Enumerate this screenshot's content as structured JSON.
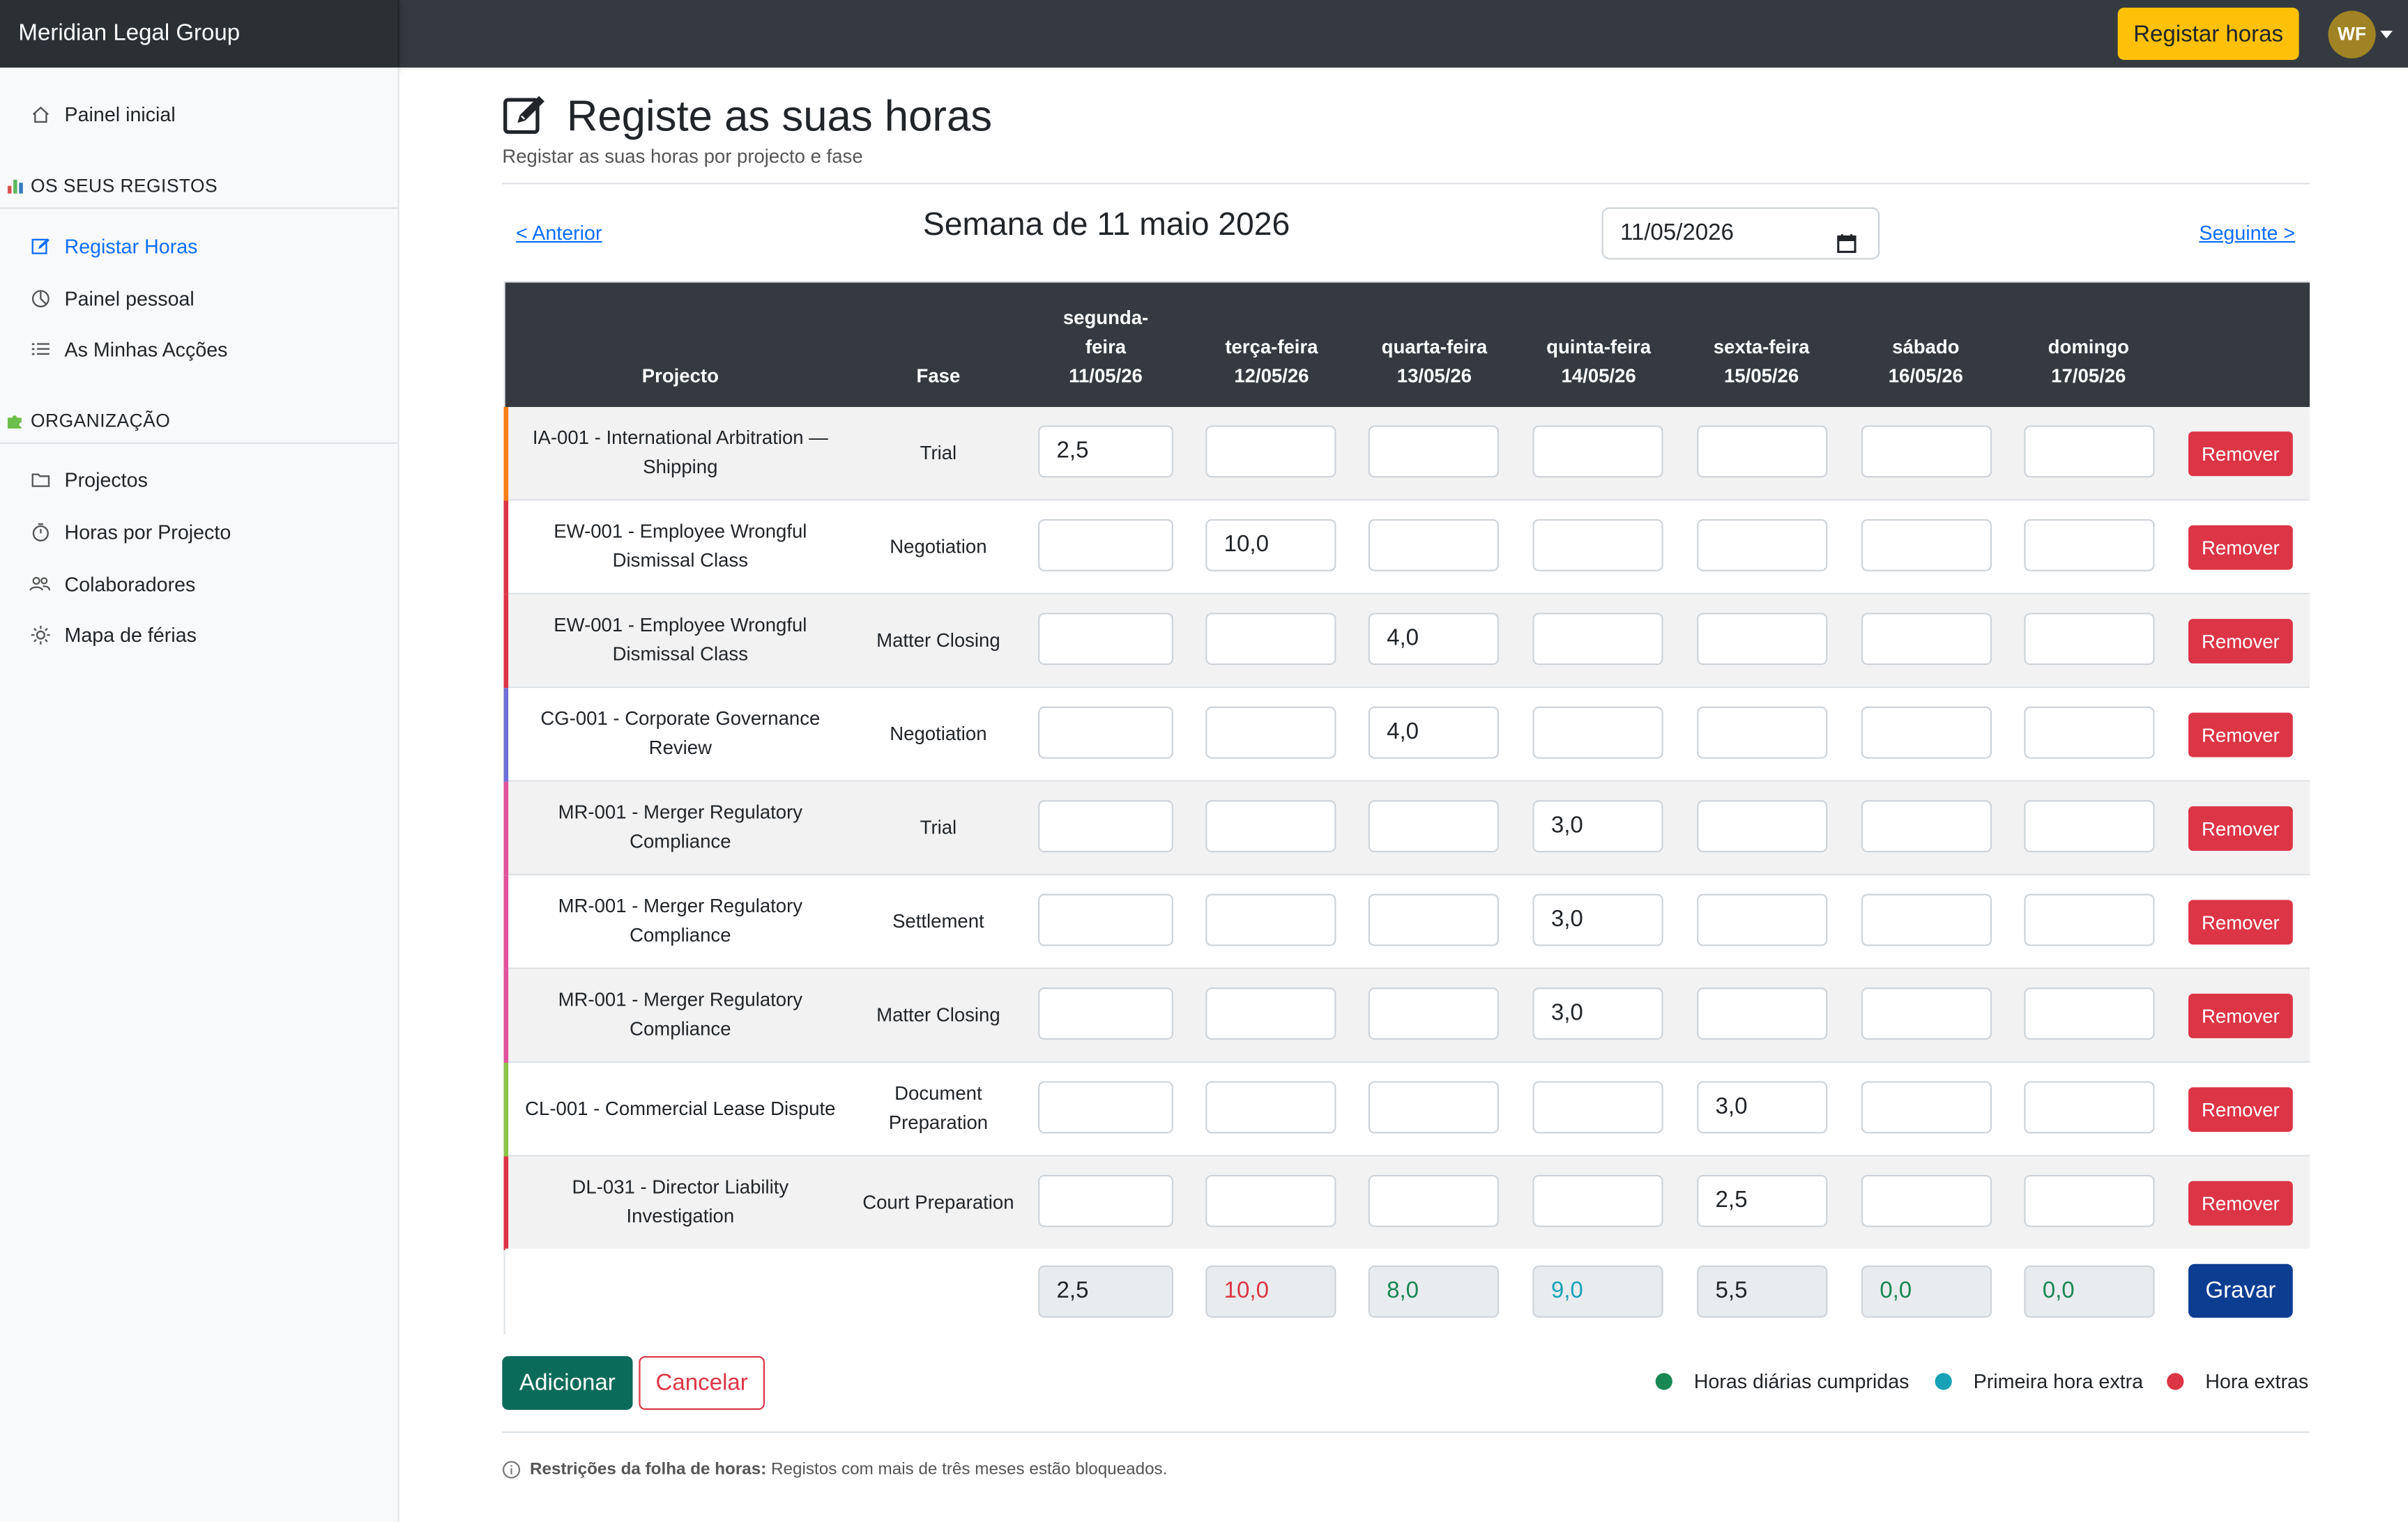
{
  "app": {
    "brand": "Meridian Legal Group",
    "register_button": "Registar horas",
    "avatar_initials": "WF"
  },
  "sidebar": {
    "home": "Painel inicial",
    "section1": "OS SEUS REGISTOS",
    "section1_items": [
      "Registar Horas",
      "Painel pessoal",
      "As Minhas Acções"
    ],
    "section2": "ORGANIZAÇÃO",
    "section2_items": [
      "Projectos",
      "Horas por Projecto",
      "Colaboradores",
      "Mapa de férias"
    ]
  },
  "page": {
    "title": "Registe as suas horas",
    "subtitle": "Registar as suas horas por projecto e fase",
    "prev": "< Anterior",
    "next": "Seguinte >",
    "week_label": "Semana de 11 maio 2026",
    "date_value": "11/05/2026"
  },
  "table": {
    "col_project": "Projecto",
    "col_phase": "Fase",
    "days": [
      {
        "name": "segunda-feira",
        "date": "11/05/26"
      },
      {
        "name": "terça-feira",
        "date": "12/05/26"
      },
      {
        "name": "quarta-feira",
        "date": "13/05/26"
      },
      {
        "name": "quinta-feira",
        "date": "14/05/26"
      },
      {
        "name": "sexta-feira",
        "date": "15/05/26"
      },
      {
        "name": "sábado",
        "date": "16/05/26"
      },
      {
        "name": "domingo",
        "date": "17/05/26"
      }
    ],
    "remove_label": "Remover",
    "rows": [
      {
        "project": "IA-001 - International Arbitration — Shipping",
        "phase": "Trial",
        "color": "#fd7e14",
        "hours": [
          "2,5",
          "",
          "",
          "",
          "",
          "",
          ""
        ]
      },
      {
        "project": "EW-001 - Employee Wrongful Dismissal Class",
        "phase": "Negotiation",
        "color": "#dc3545",
        "hours": [
          "",
          "10,0",
          "",
          "",
          "",
          "",
          ""
        ]
      },
      {
        "project": "EW-001 - Employee Wrongful Dismissal Class",
        "phase": "Matter Closing",
        "color": "#dc3545",
        "hours": [
          "",
          "",
          "4,0",
          "",
          "",
          "",
          ""
        ]
      },
      {
        "project": "CG-001 - Corporate Governance Review",
        "phase": "Negotiation",
        "color": "#6f6fd6",
        "hours": [
          "",
          "",
          "4,0",
          "",
          "",
          "",
          ""
        ]
      },
      {
        "project": "MR-001 - Merger Regulatory Compliance",
        "phase": "Trial",
        "color": "#e0529c",
        "hours": [
          "",
          "",
          "",
          "3,0",
          "",
          "",
          ""
        ]
      },
      {
        "project": "MR-001 - Merger Regulatory Compliance",
        "phase": "Settlement",
        "color": "#e0529c",
        "hours": [
          "",
          "",
          "",
          "3,0",
          "",
          "",
          ""
        ]
      },
      {
        "project": "MR-001 - Merger Regulatory Compliance",
        "phase": "Matter Closing",
        "color": "#e0529c",
        "hours": [
          "",
          "",
          "",
          "3,0",
          "",
          "",
          ""
        ]
      },
      {
        "project": "CL-001 - Commercial Lease Dispute",
        "phase": "Document Preparation",
        "color": "#8bc34a",
        "hours": [
          "",
          "",
          "",
          "",
          "3,0",
          "",
          ""
        ]
      },
      {
        "project": "DL-031 - Director Liability Investigation",
        "phase": "Court Preparation",
        "color": "#dc3545",
        "hours": [
          "",
          "",
          "",
          "",
          "2,5",
          "",
          ""
        ]
      }
    ],
    "totals": [
      {
        "value": "2,5",
        "color": "#212529"
      },
      {
        "value": "10,0",
        "color": "#dc3545"
      },
      {
        "value": "8,0",
        "color": "#198754"
      },
      {
        "value": "9,0",
        "color": "#17a2b8"
      },
      {
        "value": "5,5",
        "color": "#212529"
      },
      {
        "value": "0,0",
        "color": "#198754"
      },
      {
        "value": "0,0",
        "color": "#198754"
      }
    ],
    "save_label": "Gravar"
  },
  "actions": {
    "add": "Adicionar",
    "cancel": "Cancelar"
  },
  "legend": [
    {
      "label": "Horas diárias cumpridas",
      "color": "#198754"
    },
    {
      "label": "Primeira hora extra",
      "color": "#17a2b8"
    },
    {
      "label": "Hora extras",
      "color": "#dc3545"
    }
  ],
  "note": {
    "bold": "Restrições da folha de horas:",
    "text": "Registos com mais de três meses estão bloqueados."
  }
}
